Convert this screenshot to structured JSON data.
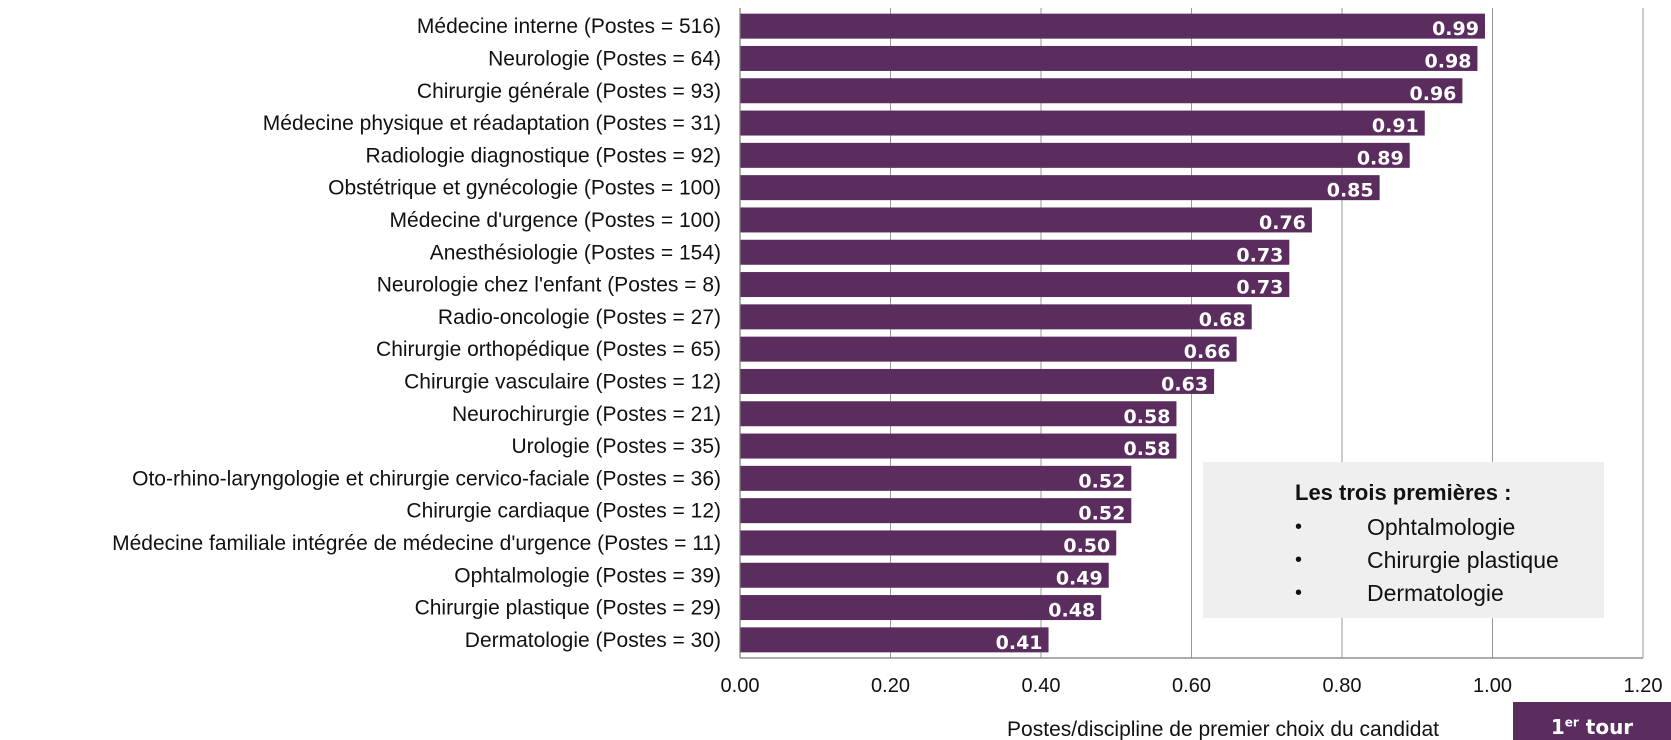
{
  "chart_data": {
    "type": "bar",
    "orientation": "horizontal",
    "categories": [
      "Médecine interne (Postes = 516)",
      "Neurologie (Postes = 64)",
      "Chirurgie générale (Postes = 93)",
      "Médecine physique et réadaptation (Postes = 31)",
      "Radiologie diagnostique (Postes = 92)",
      "Obstétrique et gynécologie (Postes = 100)",
      "Médecine d'urgence (Postes = 100)",
      "Anesthésiologie (Postes = 154)",
      "Neurologie chez l'enfant (Postes = 8)",
      "Radio-oncologie (Postes = 27)",
      "Chirurgie orthopédique (Postes = 65)",
      "Chirurgie vasculaire (Postes = 12)",
      "Neurochirurgie (Postes = 21)",
      "Urologie (Postes = 35)",
      "Oto-rhino-laryngologie et chirurgie cervico-faciale (Postes = 36)",
      "Chirurgie cardiaque (Postes = 12)",
      "Médecine familiale intégrée de médecine d'urgence (Postes = 11)",
      "Ophtalmologie (Postes = 39)",
      "Chirurgie plastique (Postes = 29)",
      "Dermatologie (Postes = 30)"
    ],
    "values": [
      0.99,
      0.98,
      0.96,
      0.91,
      0.89,
      0.85,
      0.76,
      0.73,
      0.73,
      0.68,
      0.66,
      0.63,
      0.58,
      0.58,
      0.52,
      0.52,
      0.5,
      0.49,
      0.48,
      0.41
    ],
    "value_labels": [
      "0.99",
      "0.98",
      "0.96",
      "0.91",
      "0.89",
      "0.85",
      "0.76",
      "0.73",
      "0.73",
      "0.68",
      "0.66",
      "0.63",
      "0.58",
      "0.58",
      "0.52",
      "0.52",
      "0.50",
      "0.49",
      "0.48",
      "0.41"
    ],
    "xlabel": "Postes/discipline de premier choix du candidat",
    "xlim": [
      0,
      1.2
    ],
    "xticks": [
      "0.00",
      "0.20",
      "0.40",
      "0.60",
      "0.80",
      "1.00",
      "1.20"
    ],
    "grid": "vertical",
    "bar_color": "#5b2c5e",
    "annotation": {
      "title": "Les trois premières :",
      "bullet": "•",
      "items": [
        "Ophtalmologie",
        "Chirurgie plastique",
        "Dermatologie"
      ],
      "background": "#efefef"
    }
  },
  "badge": {
    "main": "1",
    "sup": "er",
    "rest": "tour",
    "color": "#5b2c5e"
  }
}
